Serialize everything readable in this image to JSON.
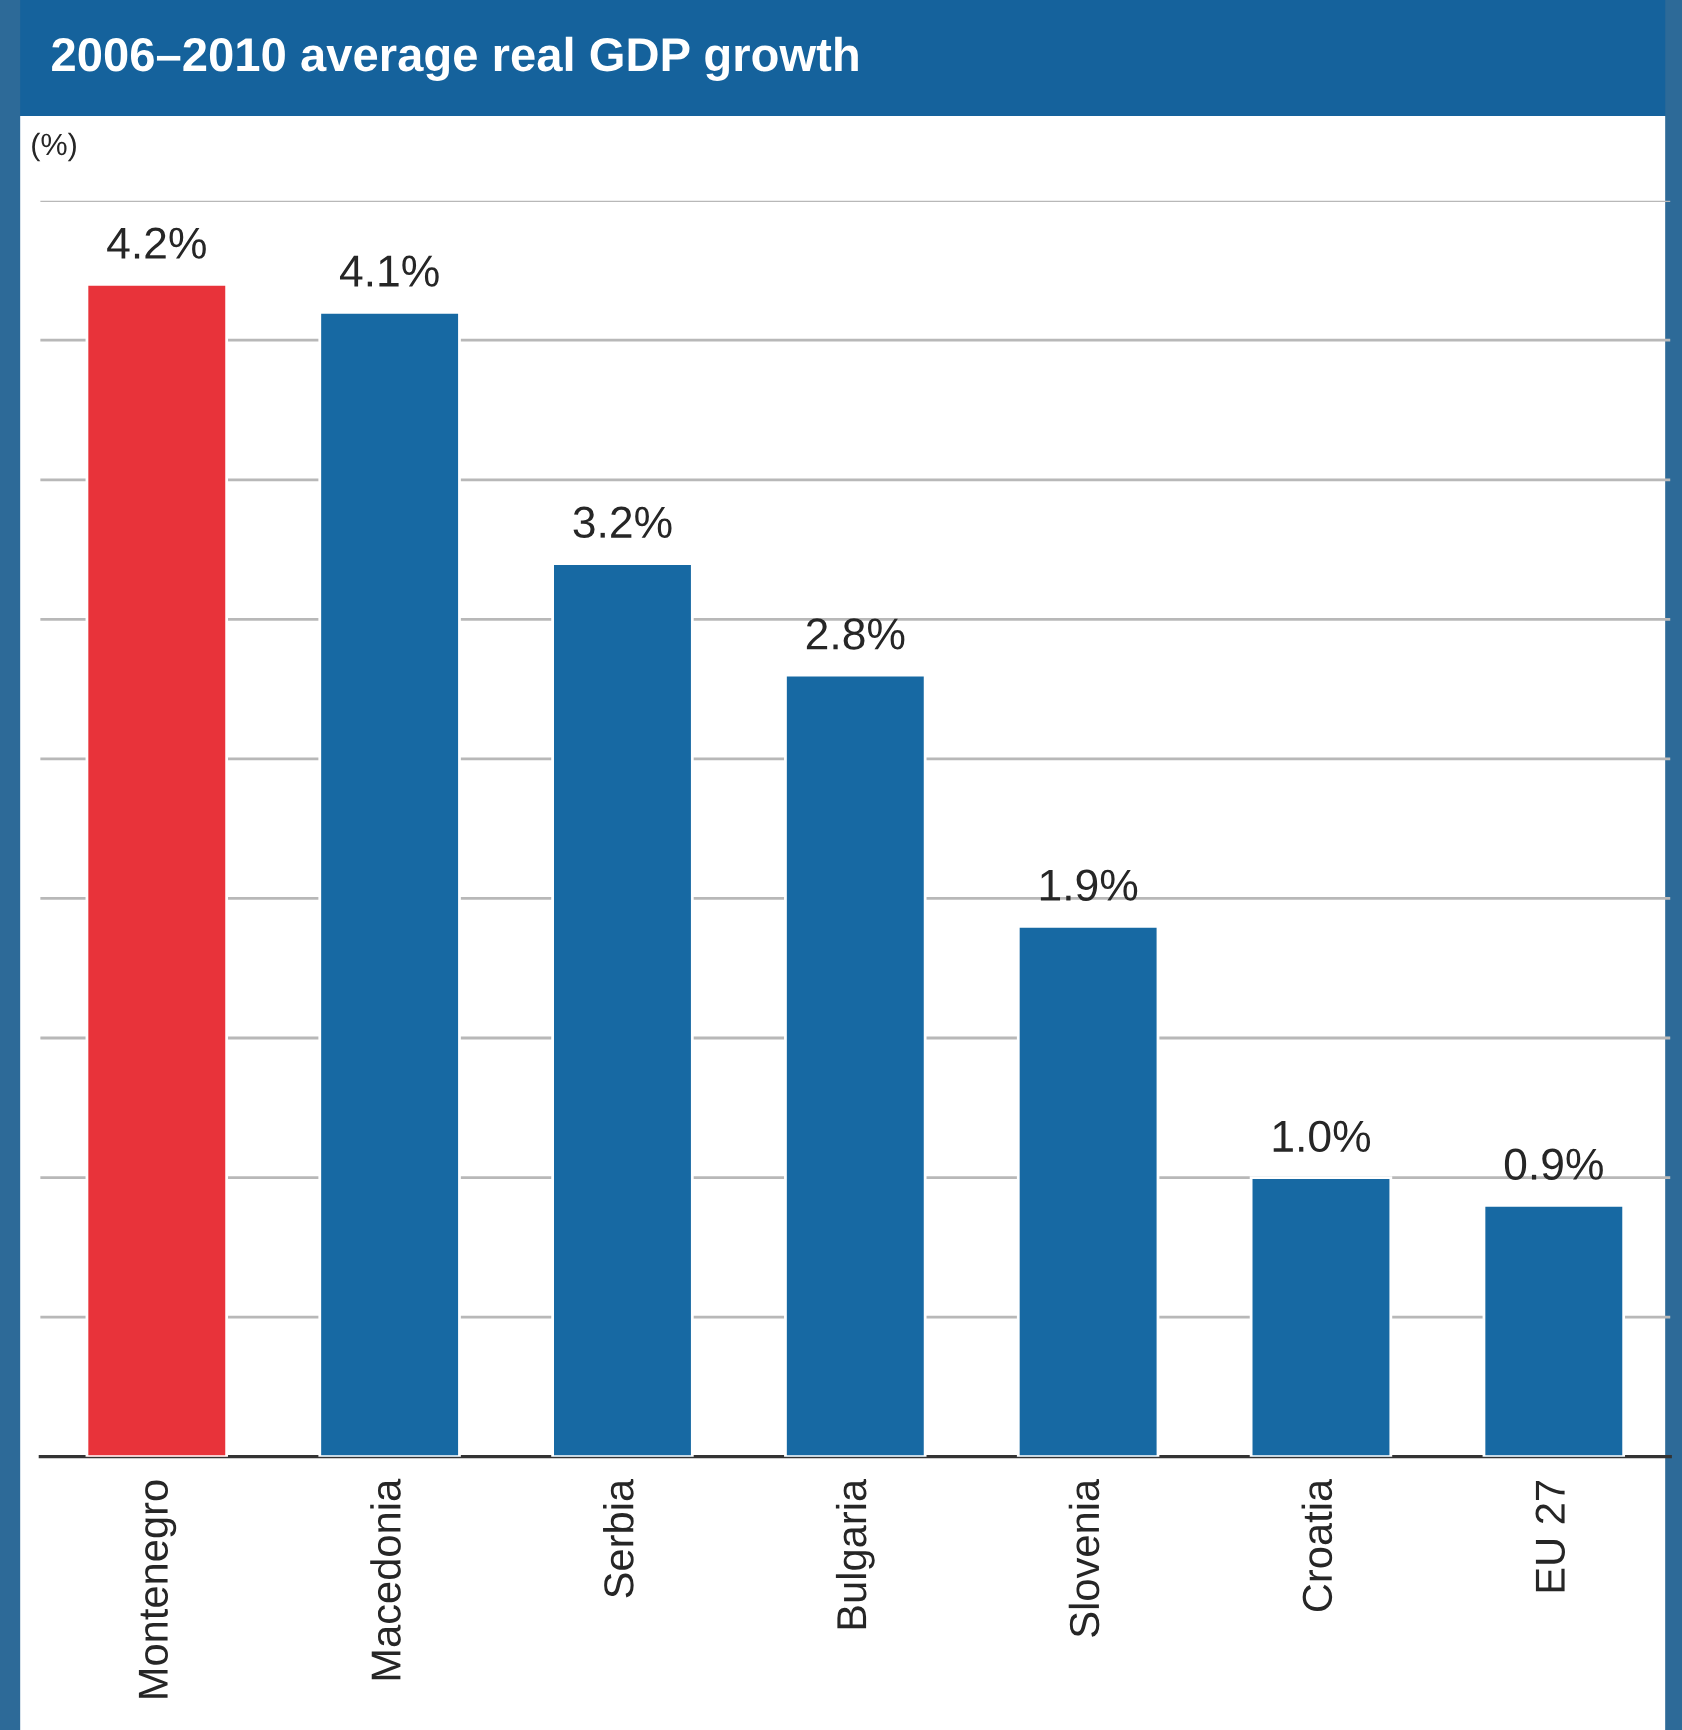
{
  "chart_data": {
    "type": "bar",
    "title": "2006–2010 average real GDP growth",
    "ylabel": "(%)",
    "categories": [
      "Montenegro",
      "Macedonia",
      "Serbia",
      "Bulgaria",
      "Slovenia",
      "Croatia",
      "EU 27"
    ],
    "values": [
      4.2,
      4.1,
      3.2,
      2.8,
      1.9,
      1.0,
      0.9
    ],
    "colors": [
      "#e8333a",
      "#1769a3",
      "#1769a3",
      "#1769a3",
      "#1769a3",
      "#1769a3",
      "#1769a3"
    ],
    "value_labels": [
      "4.2%",
      "4.1%",
      "3.2%",
      "2.8%",
      "1.9%",
      "1.0%",
      "0.9%"
    ],
    "ylim": [
      0,
      4.5
    ],
    "yticks": [
      {
        "value": 0,
        "label": null
      },
      {
        "value": 0.5,
        "label": null
      },
      {
        "value": 1,
        "label": null
      },
      {
        "value": 1.5,
        "label": null
      },
      {
        "value": 2,
        "label": null
      },
      {
        "value": 2.5,
        "label": null
      },
      {
        "value": 3,
        "label": null
      },
      {
        "value": 3.5,
        "label": null
      },
      {
        "value": 4,
        "label": null
      },
      {
        "value": 4.5,
        "label": null
      }
    ],
    "grid": "y",
    "tick_labels": "x"
  }
}
